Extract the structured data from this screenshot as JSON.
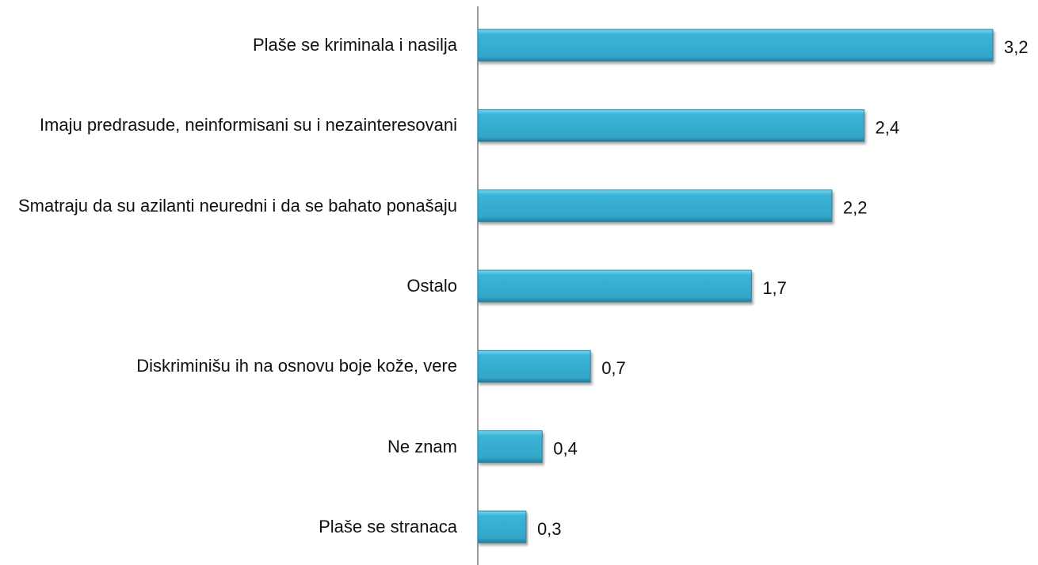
{
  "chart_data": {
    "type": "bar",
    "orientation": "horizontal",
    "categories": [
      "Plaše se kriminala i nasilja",
      "Imaju predrasude, neinformisani su i nezainteresovani",
      "Smatraju da su azilanti neuredni i da se bahato ponašaju",
      "Ostalo",
      "Diskriminišu ih na osnovu boje kože, vere",
      "Ne znam",
      "Plaše se stranaca"
    ],
    "values": [
      3.2,
      2.4,
      2.2,
      1.7,
      0.7,
      0.4,
      0.3
    ],
    "value_labels": [
      "3,2",
      "2,4",
      "2,2",
      "1,7",
      "0,7",
      "0,4",
      "0,3"
    ],
    "color": "#3bb4d8"
  }
}
